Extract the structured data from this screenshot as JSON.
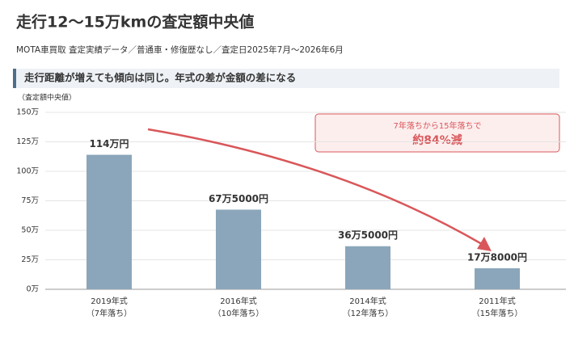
{
  "chart_data": {
    "type": "bar",
    "title": "走行12〜15万kmの査定額中央値",
    "subtitle": "MOTA車買取 査定実績データ／普通車・修復歴なし／査定日2025年7月〜2026年6月",
    "section_heading": "走行距離が増えても傾向は同じ。年式の差が金額の差になる",
    "y_axis_label": "（査定額中央値）",
    "categories": [
      "2019年式",
      "2016年式",
      "2014年式",
      "2011年式"
    ],
    "category_notes": [
      "（7年落ち）",
      "（10年落ち）",
      "（12年落ち）",
      "（15年落ち）"
    ],
    "values": [
      114,
      67.5,
      36.5,
      17.8
    ],
    "value_labels": [
      "114万円",
      "67万5000円",
      "36万5000円",
      "17万8000円"
    ],
    "color": "#8ba6ba",
    "ylim": [
      0,
      150
    ],
    "yticks": [
      {
        "value": 0,
        "label": "0万"
      },
      {
        "value": 25,
        "label": "25万"
      },
      {
        "value": 50,
        "label": "50万"
      },
      {
        "value": 75,
        "label": "75万"
      },
      {
        "value": 100,
        "label": "100万"
      },
      {
        "value": 125,
        "label": "125万"
      },
      {
        "value": 150,
        "label": "150万"
      }
    ],
    "grid": true,
    "annotation": {
      "text": "7年落ちから15年落ちで",
      "emphasis": "約84%減"
    }
  }
}
